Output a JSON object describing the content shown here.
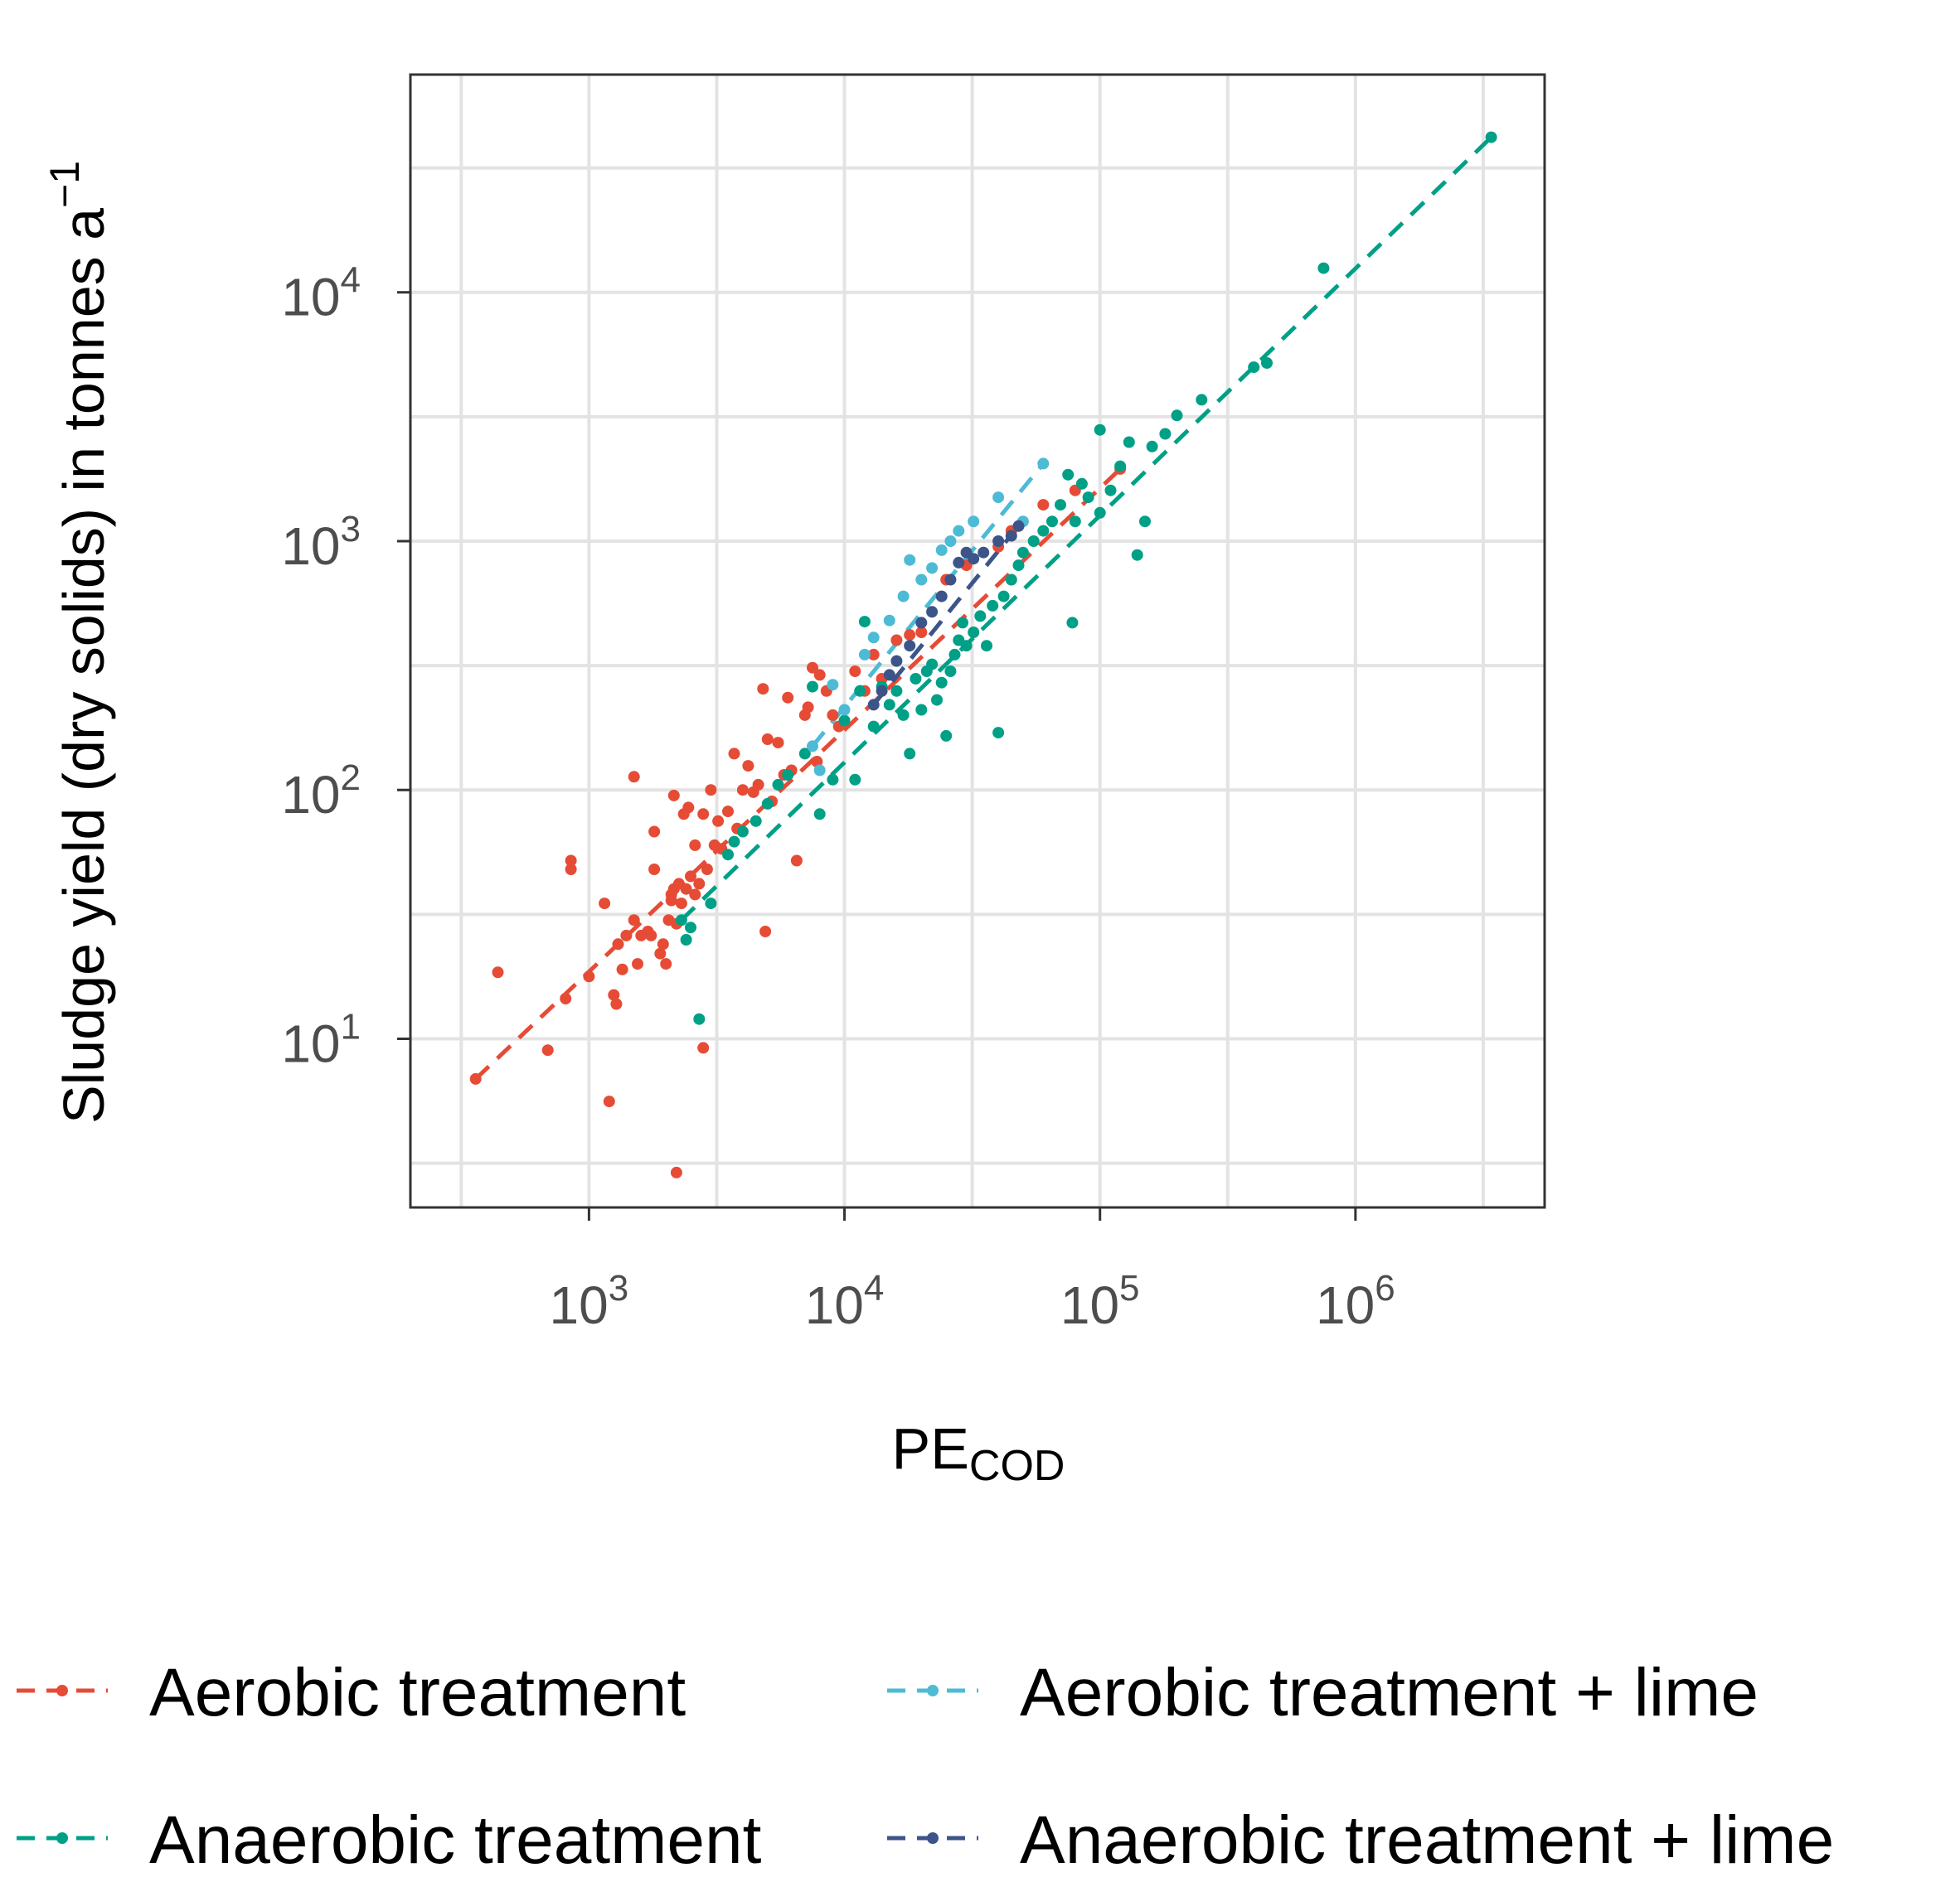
{
  "chart_data": {
    "type": "scatter",
    "xlabel": "PE",
    "xlabel_subscript": "COD",
    "ylabel": "Sludge yield (dry solids) in tonnes a",
    "ylabel_superscript": "−1",
    "x_scale": "log10",
    "y_scale": "log10",
    "xlim": [
      200,
      5500000
    ],
    "ylim": [
      2.1,
      75000
    ],
    "grid": true,
    "legend_position": "bottom",
    "x_ticks": [
      {
        "value": 1000,
        "base": "10",
        "exp": "3"
      },
      {
        "value": 10000,
        "base": "10",
        "exp": "4"
      },
      {
        "value": 100000,
        "base": "10",
        "exp": "5"
      },
      {
        "value": 1000000,
        "base": "10",
        "exp": "6"
      }
    ],
    "y_ticks": [
      {
        "value": 10,
        "base": "10",
        "exp": "1"
      },
      {
        "value": 100,
        "base": "10",
        "exp": "2"
      },
      {
        "value": 1000,
        "base": "10",
        "exp": "3"
      },
      {
        "value": 10000,
        "base": "10",
        "exp": "4"
      }
    ],
    "series": [
      {
        "name": "Aerobic treatment",
        "color": "#E64B35",
        "trend": [
          [
            360,
            6.9
          ],
          [
            120000,
            1950
          ]
        ],
        "points": [
          [
            360,
            6.9
          ],
          [
            440,
            18.5
          ],
          [
            690,
            9
          ],
          [
            810,
            14.5
          ],
          [
            850,
            52
          ],
          [
            850,
            48
          ],
          [
            1000,
            17.8
          ],
          [
            1150,
            35
          ],
          [
            1200,
            5.6
          ],
          [
            1250,
            15
          ],
          [
            1280,
            13.8
          ],
          [
            1300,
            24
          ],
          [
            1350,
            19
          ],
          [
            1400,
            26
          ],
          [
            1500,
            30
          ],
          [
            1500,
            113
          ],
          [
            1550,
            20
          ],
          [
            1600,
            26
          ],
          [
            1700,
            27
          ],
          [
            1750,
            26
          ],
          [
            1800,
            48
          ],
          [
            1800,
            68
          ],
          [
            1900,
            22
          ],
          [
            1950,
            24
          ],
          [
            2000,
            20
          ],
          [
            2050,
            30
          ],
          [
            2100,
            36
          ],
          [
            2100,
            38
          ],
          [
            2150,
            40
          ],
          [
            2150,
            95
          ],
          [
            2200,
            2.9
          ],
          [
            2200,
            29
          ],
          [
            2250,
            42
          ],
          [
            2300,
            35
          ],
          [
            2350,
            80
          ],
          [
            2400,
            40
          ],
          [
            2450,
            85
          ],
          [
            2500,
            45
          ],
          [
            2600,
            38
          ],
          [
            2600,
            60
          ],
          [
            2700,
            42
          ],
          [
            2800,
            80
          ],
          [
            2800,
            9.2
          ],
          [
            2900,
            48
          ],
          [
            3000,
            100
          ],
          [
            3100,
            60
          ],
          [
            3200,
            75
          ],
          [
            3300,
            58
          ],
          [
            3500,
            82
          ],
          [
            3700,
            140
          ],
          [
            3800,
            70
          ],
          [
            4000,
            100
          ],
          [
            4200,
            125
          ],
          [
            4400,
            98
          ],
          [
            4600,
            105
          ],
          [
            4800,
            255
          ],
          [
            4900,
            27
          ],
          [
            5000,
            160
          ],
          [
            5200,
            90
          ],
          [
            5500,
            155
          ],
          [
            5800,
            115
          ],
          [
            6000,
            235
          ],
          [
            6200,
            120
          ],
          [
            6500,
            52
          ],
          [
            7000,
            200
          ],
          [
            7200,
            215
          ],
          [
            7500,
            310
          ],
          [
            7800,
            130
          ],
          [
            8000,
            290
          ],
          [
            8500,
            250
          ],
          [
            9000,
            200
          ],
          [
            9500,
            180
          ],
          [
            11000,
            300
          ],
          [
            12000,
            250
          ],
          [
            13000,
            350
          ],
          [
            14000,
            280
          ],
          [
            16000,
            400
          ],
          [
            18000,
            420
          ],
          [
            20000,
            430
          ],
          [
            25000,
            700
          ],
          [
            30000,
            800
          ],
          [
            40000,
            950
          ],
          [
            45000,
            1100
          ],
          [
            60000,
            1400
          ],
          [
            80000,
            1600
          ],
          [
            120000,
            1950
          ]
        ]
      },
      {
        "name": "Anaerobic treatment",
        "color": "#00A087",
        "trend": [
          [
            2300,
            30
          ],
          [
            3400000,
            42000
          ]
        ],
        "points": [
          [
            2300,
            30
          ],
          [
            2400,
            25
          ],
          [
            2500,
            28
          ],
          [
            2700,
            12
          ],
          [
            3000,
            35
          ],
          [
            3500,
            55
          ],
          [
            3700,
            62
          ],
          [
            4000,
            68
          ],
          [
            4500,
            75
          ],
          [
            5000,
            88
          ],
          [
            5500,
            105
          ],
          [
            6000,
            115
          ],
          [
            7000,
            140
          ],
          [
            7500,
            260
          ],
          [
            8000,
            80
          ],
          [
            9000,
            110
          ],
          [
            10000,
            190
          ],
          [
            11000,
            110
          ],
          [
            11500,
            250
          ],
          [
            12000,
            475
          ],
          [
            13000,
            180
          ],
          [
            14000,
            260
          ],
          [
            15000,
            220
          ],
          [
            16000,
            250
          ],
          [
            17000,
            200
          ],
          [
            18000,
            140
          ],
          [
            19000,
            280
          ],
          [
            20000,
            210
          ],
          [
            21000,
            300
          ],
          [
            22000,
            320
          ],
          [
            23000,
            230
          ],
          [
            24000,
            270
          ],
          [
            25000,
            165
          ],
          [
            26000,
            300
          ],
          [
            27000,
            350
          ],
          [
            28000,
            400
          ],
          [
            29000,
            470
          ],
          [
            30000,
            380
          ],
          [
            32000,
            430
          ],
          [
            34000,
            500
          ],
          [
            36000,
            380
          ],
          [
            38000,
            550
          ],
          [
            40000,
            170
          ],
          [
            42000,
            600
          ],
          [
            45000,
            700
          ],
          [
            48000,
            800
          ],
          [
            50000,
            900
          ],
          [
            55000,
            1000
          ],
          [
            60000,
            1100
          ],
          [
            65000,
            1200
          ],
          [
            70000,
            1400
          ],
          [
            75000,
            1850
          ],
          [
            78000,
            470
          ],
          [
            80000,
            1200
          ],
          [
            85000,
            1700
          ],
          [
            90000,
            1500
          ],
          [
            100000,
            1300
          ],
          [
            100000,
            2800
          ],
          [
            110000,
            1600
          ],
          [
            120000,
            2000
          ],
          [
            130000,
            2500
          ],
          [
            140000,
            880
          ],
          [
            150000,
            1200
          ],
          [
            160000,
            2400
          ],
          [
            180000,
            2700
          ],
          [
            200000,
            3200
          ],
          [
            250000,
            3700
          ],
          [
            400000,
            5000
          ],
          [
            450000,
            5200
          ],
          [
            750000,
            12500
          ],
          [
            3400000,
            42000
          ]
        ]
      },
      {
        "name": "Aerobic treatment + lime",
        "color": "#4DBBD5",
        "trend": [
          [
            7500,
            150
          ],
          [
            60000,
            2050
          ]
        ],
        "points": [
          [
            7500,
            150
          ],
          [
            8000,
            120
          ],
          [
            9000,
            265
          ],
          [
            10000,
            210
          ],
          [
            12000,
            350
          ],
          [
            13000,
            410
          ],
          [
            15000,
            480
          ],
          [
            17000,
            600
          ],
          [
            18000,
            840
          ],
          [
            20000,
            700
          ],
          [
            22000,
            780
          ],
          [
            24000,
            920
          ],
          [
            26000,
            1000
          ],
          [
            28000,
            1100
          ],
          [
            32000,
            1200
          ],
          [
            40000,
            1500
          ],
          [
            50000,
            1200
          ],
          [
            60000,
            2050
          ]
        ]
      },
      {
        "name": "Anaerobic treatment + lime",
        "color": "#3C5488",
        "trend": [
          [
            13000,
            220
          ],
          [
            48000,
            1150
          ]
        ],
        "points": [
          [
            13000,
            220
          ],
          [
            14000,
            250
          ],
          [
            15000,
            290
          ],
          [
            16000,
            330
          ],
          [
            18000,
            380
          ],
          [
            20000,
            470
          ],
          [
            22000,
            520
          ],
          [
            24000,
            600
          ],
          [
            26000,
            700
          ],
          [
            28000,
            820
          ],
          [
            30000,
            900
          ],
          [
            32000,
            850
          ],
          [
            35000,
            900
          ],
          [
            40000,
            1000
          ],
          [
            45000,
            1050
          ],
          [
            48000,
            1150
          ]
        ]
      }
    ]
  }
}
